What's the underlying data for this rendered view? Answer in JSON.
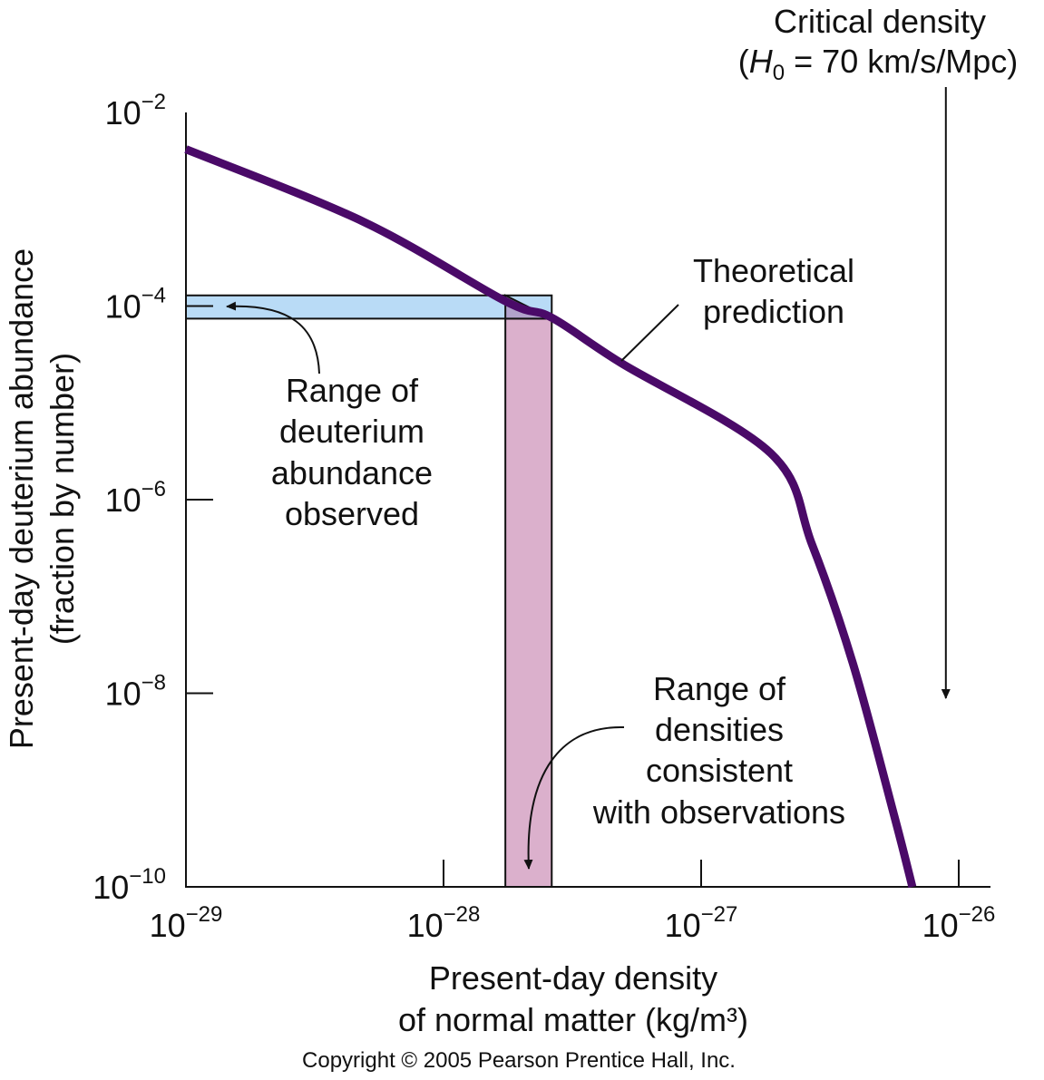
{
  "chart_data": {
    "type": "line",
    "title": "",
    "xlabel_lines": [
      "Present-day density",
      "of normal matter (kg/m³)"
    ],
    "ylabel_lines": [
      "Present-day deuterium abundance",
      "(fraction by number)"
    ],
    "xscale": "log",
    "yscale": "log",
    "xlim": [
      1e-29,
      1.3e-26
    ],
    "ylim": [
      1e-10,
      0.01
    ],
    "x_ticks": [
      {
        "base": "10",
        "exp": "−29"
      },
      {
        "base": "10",
        "exp": "−28"
      },
      {
        "base": "10",
        "exp": "−27"
      },
      {
        "base": "10",
        "exp": "−26"
      }
    ],
    "y_ticks": [
      {
        "base": "10",
        "exp": "−2"
      },
      {
        "base": "10",
        "exp": "−4"
      },
      {
        "base": "10",
        "exp": "−6"
      },
      {
        "base": "10",
        "exp": "−8"
      },
      {
        "base": "10",
        "exp": "−10"
      }
    ],
    "x_tick_logs": [
      -29,
      -28,
      -27,
      -26
    ],
    "y_tick_logs": [
      -2,
      -4,
      -6,
      -8,
      -10
    ],
    "series": [
      {
        "name": "Theoretical prediction",
        "color": "#4a0a68",
        "log_x": [
          -29.0,
          -28.31,
          -27.76,
          -27.58,
          -27.31,
          -26.73,
          -26.57,
          -26.41,
          -26.25,
          -26.18
        ],
        "log_y": [
          -2.38,
          -3.13,
          -3.95,
          -4.12,
          -4.59,
          -5.52,
          -6.46,
          -7.7,
          -9.27,
          -10.0
        ]
      }
    ],
    "observed_abundance_band": {
      "log_y_range": [
        -4.13,
        -3.89
      ],
      "color": "#b9dbf6"
    },
    "consistent_density_band": {
      "log_x_range": [
        -27.76,
        -27.58
      ],
      "color": "#dbb0cc"
    },
    "overlap_color": "#b1a2cb",
    "critical_density_log_x": -26.05,
    "annotations": {
      "critical_density": [
        "Critical density"
      ],
      "hubble": {
        "open": "(",
        "H": "H",
        "sub": "0",
        "rest": " = 70 km/s/Mpc)"
      },
      "theory": [
        "Theoretical",
        "prediction"
      ],
      "abundance_range": [
        "Range of",
        "deuterium",
        "abundance",
        "observed"
      ],
      "density_range": [
        "Range of",
        "densities",
        "consistent",
        "with observations"
      ]
    },
    "copyright": "Copyright © 2005 Pearson Prentice Hall, Inc."
  }
}
